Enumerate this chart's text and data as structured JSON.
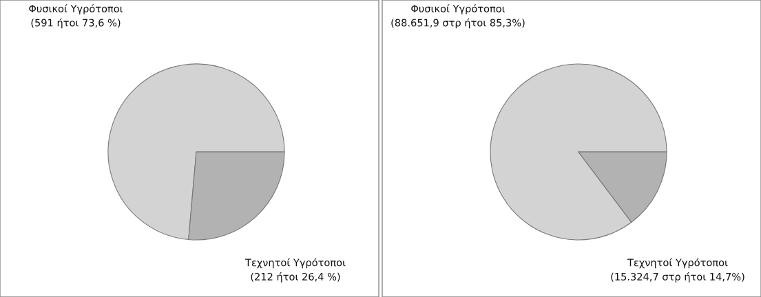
{
  "chart_data": [
    {
      "type": "pie",
      "categories": [
        "Φυσικοί Υγρότοποι",
        "Τεχνητοί Υγρότοποι"
      ],
      "values": [
        591,
        212
      ],
      "colors": [
        "#d3d3d3",
        "#b2b2b2"
      ],
      "value_labels": [
        "(591 ήτοι 73,6 %)",
        "(212 ήτοι 26,4 %)"
      ]
    },
    {
      "type": "pie",
      "categories": [
        "Φυσικοί Υγρότοποι",
        "Τεχνητοί Υγρότοποι"
      ],
      "values": [
        88651.9,
        15324.7
      ],
      "colors": [
        "#d3d3d3",
        "#b2b2b2"
      ],
      "value_labels": [
        "(88.651,9 στρ ήτοι 85,3%)",
        "(15.324,7 στρ ήτοι 14,7%)"
      ]
    }
  ]
}
